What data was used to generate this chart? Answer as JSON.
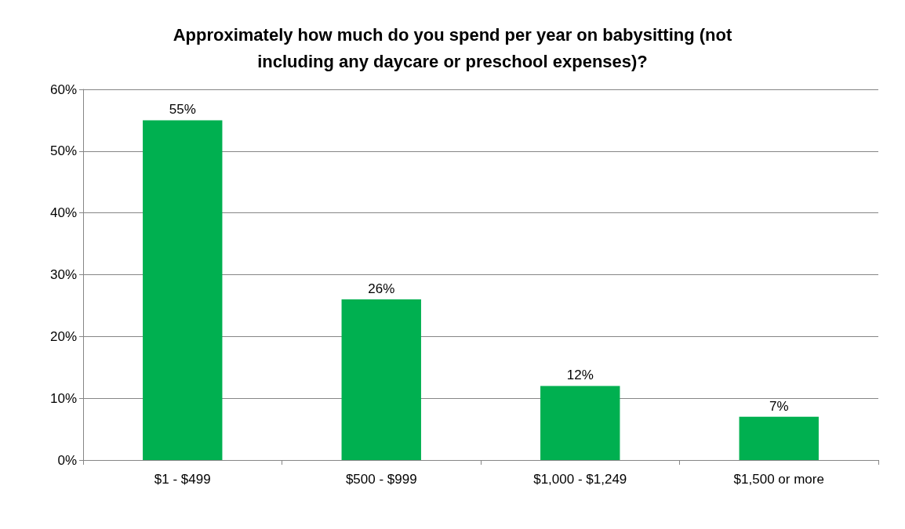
{
  "chart_data": {
    "type": "bar",
    "title": "Approximately how much do you spend per year on babysitting (not\nincluding any daycare or preschool expenses)?",
    "categories": [
      "$1 - $499",
      "$500 - $999",
      "$1,000 - $1,249",
      "$1,500 or more"
    ],
    "values": [
      55,
      26,
      12,
      7
    ],
    "color": "#00b050",
    "value_labels": [
      "55%",
      "26%",
      "12%",
      "7%"
    ],
    "ylim": [
      0,
      60
    ],
    "yticks": [
      {
        "value": 0,
        "label": "0%"
      },
      {
        "value": 10,
        "label": "10%"
      },
      {
        "value": 20,
        "label": "20%"
      },
      {
        "value": 30,
        "label": "30%"
      },
      {
        "value": 40,
        "label": "40%"
      },
      {
        "value": 50,
        "label": "50%"
      },
      {
        "value": 60,
        "label": "60%"
      }
    ],
    "grid": "y"
  }
}
